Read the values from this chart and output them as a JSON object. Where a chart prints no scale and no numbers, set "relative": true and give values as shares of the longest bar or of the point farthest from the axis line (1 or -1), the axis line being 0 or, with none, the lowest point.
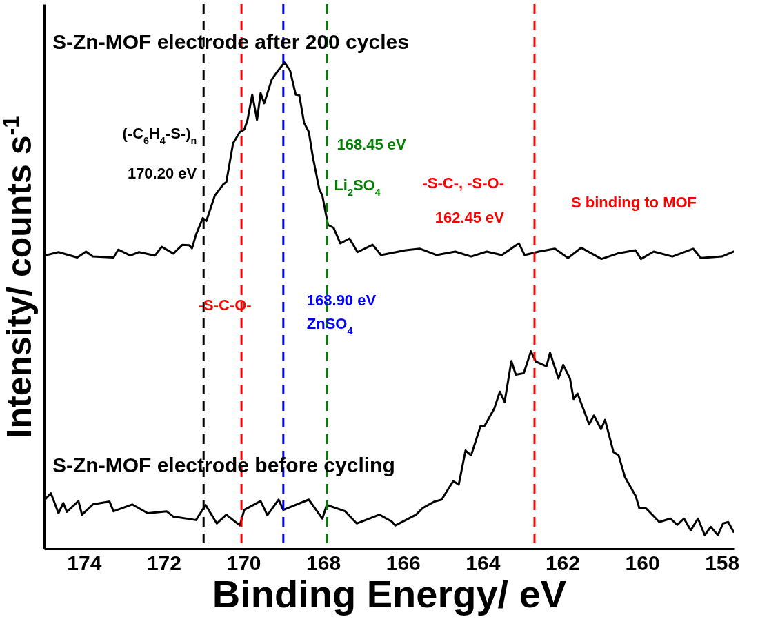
{
  "chart_data": {
    "type": "line",
    "relative": true,
    "xlabel": "Binding Energy/ eV",
    "ylabel": "Intensity/ counts s$^{-1}$",
    "xlim": [
      175,
      157.7
    ],
    "xticks": [
      174,
      172,
      170,
      168,
      166,
      164,
      162,
      160,
      158
    ],
    "series": [
      {
        "name": "S-Zn-MOF electrode after 200 cycles",
        "color": "#000000",
        "x": [
          174.98,
          174.64,
          174.17,
          173.95,
          173.78,
          173.26,
          173.14,
          172.84,
          172.62,
          172.22,
          172.05,
          171.76,
          171.53,
          171.36,
          171.29,
          171.19,
          171.02,
          170.93,
          170.72,
          170.5,
          170.43,
          170.26,
          170.09,
          169.98,
          169.9,
          169.78,
          169.66,
          169.57,
          169.48,
          169.29,
          169.17,
          168.97,
          168.83,
          168.69,
          168.6,
          168.48,
          168.36,
          168.26,
          168.1,
          168.02,
          167.88,
          167.74,
          167.57,
          167.34,
          167.14,
          166.76,
          166.55,
          165.93,
          165.57,
          165.16,
          164.69,
          164.29,
          163.9,
          163.52,
          163.09,
          162.95,
          162.59,
          162.19,
          161.86,
          161.53,
          161.02,
          160.62,
          160.17,
          160.03,
          159.71,
          159.24,
          158.72,
          158.53,
          158.0,
          157.71
        ],
        "values": [
          0.603,
          0.61,
          0.599,
          0.611,
          0.601,
          0.599,
          0.615,
          0.603,
          0.61,
          0.603,
          0.621,
          0.607,
          0.625,
          0.624,
          0.618,
          0.646,
          0.68,
          0.674,
          0.726,
          0.75,
          0.754,
          0.834,
          0.857,
          0.862,
          0.881,
          0.934,
          0.882,
          0.937,
          0.916,
          0.965,
          0.979,
          1,
          0.983,
          0.934,
          0.933,
          0.876,
          0.857,
          0.806,
          0.74,
          0.726,
          0.666,
          0.66,
          0.628,
          0.638,
          0.61,
          0.625,
          0.604,
          0.614,
          0.617,
          0.604,
          0.611,
          0.601,
          0.611,
          0.604,
          0.628,
          0.604,
          0.611,
          0.617,
          0.598,
          0.619,
          0.596,
          0.607,
          0.614,
          0.596,
          0.611,
          0.601,
          0.617,
          0.598,
          0.601,
          0.611
        ]
      },
      {
        "name": "S-Zn-MOF electrode before cycling",
        "color": "#000000",
        "x": [
          174.98,
          174.83,
          174.64,
          174.52,
          174.43,
          174.14,
          174.05,
          173.78,
          173.36,
          173.26,
          172.79,
          172.4,
          171.93,
          171.76,
          171.19,
          170.95,
          170.67,
          170.43,
          170.09,
          169.98,
          169.57,
          169.4,
          169.12,
          169.0,
          168.36,
          168.02,
          167.91,
          167.45,
          167.16,
          166.59,
          166.28,
          166.19,
          166.02,
          165.67,
          165.5,
          165.21,
          165.03,
          164.74,
          164.6,
          164.43,
          164.29,
          164.05,
          163.95,
          163.71,
          163.57,
          163.45,
          163.28,
          163.17,
          162.97,
          162.79,
          162.67,
          162.4,
          162.31,
          162.1,
          161.98,
          161.81,
          161.72,
          161.62,
          161.33,
          161.21,
          161.03,
          160.93,
          160.72,
          160.59,
          160.43,
          160.16,
          160.07,
          159.9,
          159.57,
          159.29,
          159.12,
          158.95,
          158.78,
          158.6,
          158.43,
          158.28,
          158.1,
          157.97,
          157.84,
          157.71
        ],
        "values": [
          0.101,
          0.114,
          0.073,
          0.094,
          0.076,
          0.098,
          0.07,
          0.091,
          0.097,
          0.077,
          0.091,
          0.073,
          0.077,
          0.066,
          0.059,
          0.09,
          0.052,
          0.07,
          0.048,
          0.08,
          0.098,
          0.069,
          0.101,
          0.08,
          0.101,
          0.062,
          0.09,
          0.077,
          0.052,
          0.07,
          0.056,
          0.048,
          0.055,
          0.07,
          0.084,
          0.097,
          0.101,
          0.139,
          0.132,
          0.202,
          0.192,
          0.253,
          0.253,
          0.288,
          0.323,
          0.302,
          0.386,
          0.358,
          0.361,
          0.406,
          0.385,
          0.375,
          0.403,
          0.35,
          0.378,
          0.35,
          0.308,
          0.319,
          0.256,
          0.274,
          0.246,
          0.265,
          0.199,
          0.192,
          0.147,
          0.108,
          0.083,
          0.083,
          0.055,
          0.062,
          0.049,
          0.062,
          0.038,
          0.062,
          0.028,
          0.045,
          0.028,
          0.052,
          0.055,
          0.035
        ]
      }
    ],
    "ref_lines": [
      {
        "axis": "x",
        "value": 171.0,
        "color": "#000000",
        "line_style": "dashed"
      },
      {
        "axis": "x",
        "value": 170.05,
        "color": "#ff0000",
        "line_style": "dashed"
      },
      {
        "axis": "x",
        "value": 169.0,
        "color": "#0000ff",
        "line_style": "dashed"
      },
      {
        "axis": "x",
        "value": 167.9,
        "color": "#008000",
        "line_style": "dashed"
      },
      {
        "axis": "x",
        "value": 162.7,
        "color": "#ff0000",
        "line_style": "dashed"
      }
    ],
    "annotations": [
      {
        "text": "(-C$_{6}$H$_{4}$-S-)$_{n}$",
        "x": 171.0,
        "y": 0.853
      },
      {
        "text": "170.20 eV",
        "x": 171.0,
        "y": 0.771
      },
      {
        "text": "168.45 eV",
        "x": 167.9,
        "y": 0.831
      },
      {
        "text": "Li$_{2}$SO$_{4}$",
        "x": 167.9,
        "y": 0.747
      },
      {
        "text": "-S-C-, -S-O-",
        "x": 162.7,
        "y": 0.751
      },
      {
        "text": "162.45 eV",
        "x": 162.7,
        "y": 0.68
      },
      {
        "text": "S binding to MOF",
        "x": 162.7,
        "y": 0.712
      },
      {
        "text": "-S-C-O-",
        "x": 170.05,
        "y": 0.5
      },
      {
        "text": "168.90 eV",
        "x": 169.0,
        "y": 0.511
      },
      {
        "text": "ZnSO$_{4}$",
        "x": 169.0,
        "y": 0.462
      }
    ]
  }
}
